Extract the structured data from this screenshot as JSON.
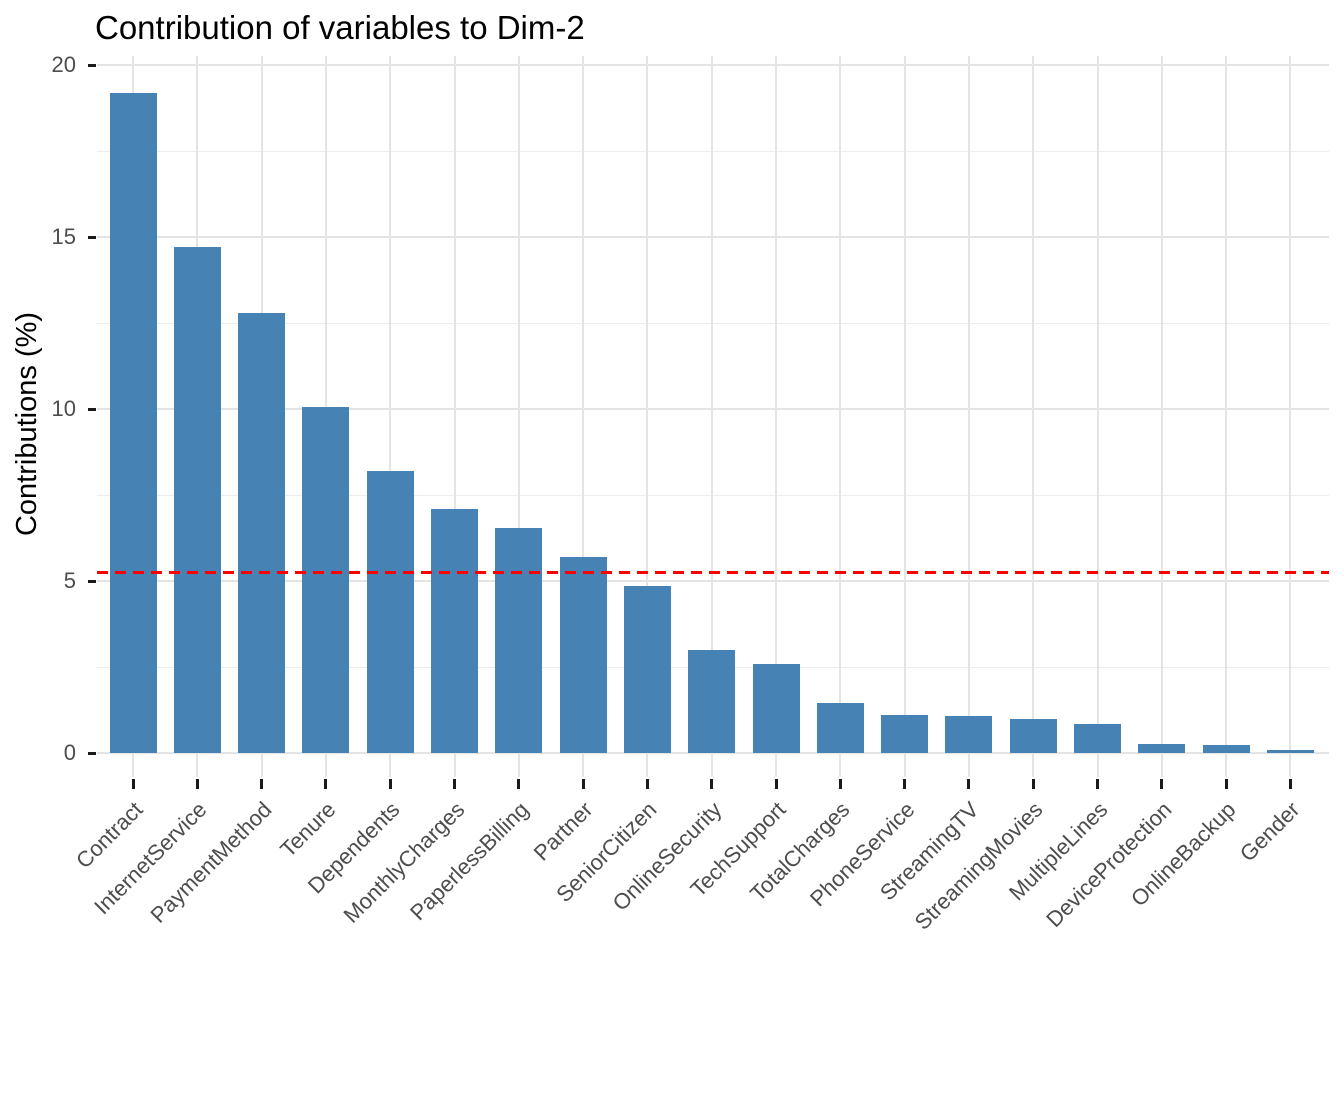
{
  "title": "Contribution of variables to Dim-2",
  "y_axis": {
    "label": "Contributions (%)",
    "tick_labels": [
      "0",
      "5",
      "10",
      "15",
      "20"
    ],
    "range": [
      0,
      20
    ]
  },
  "x_axis": {
    "label": "",
    "tick_rotation_deg": 45
  },
  "colors": {
    "bar_fill": "#4682B4",
    "reference_line": "#FF0000",
    "grid_major": "#E4E4E4",
    "grid_minor": "#EDEDED",
    "axis_text": "#4D4D4D",
    "tick_mark": "#1A1A1A",
    "title_text": "#000000",
    "background": "#FFFFFF"
  },
  "chart_data": {
    "type": "bar",
    "title": "Contribution of variables to Dim-2",
    "xlabel": "",
    "ylabel": "Contributions (%)",
    "categories": [
      "Contract",
      "InternetService",
      "PaymentMethod",
      "Tenure",
      "Dependents",
      "MonthlyCharges",
      "PaperlessBilling",
      "Partner",
      "SeniorCitizen",
      "OnlineSecurity",
      "TechSupport",
      "TotalCharges",
      "PhoneService",
      "StreamingTV",
      "StreamingMovies",
      "MultipleLines",
      "DeviceProtection",
      "OnlineBackup",
      "Gender"
    ],
    "values": [
      19.2,
      14.7,
      12.8,
      10.05,
      8.2,
      7.1,
      6.55,
      5.7,
      4.85,
      3.0,
      2.6,
      1.45,
      1.1,
      1.08,
      1.0,
      0.85,
      0.27,
      0.24,
      0.09
    ],
    "ylim": [
      0,
      20
    ],
    "yticks": [
      0,
      5,
      10,
      15,
      20
    ],
    "yticks_minor": [
      2.5,
      7.5,
      12.5,
      17.5
    ],
    "grid": true,
    "legend_position": "none",
    "bar_color": "#4682B4",
    "x_tick_rotation_deg": 45,
    "reference_line": {
      "value": 5.26,
      "linetype": "dashed",
      "color": "#FF0000"
    }
  }
}
